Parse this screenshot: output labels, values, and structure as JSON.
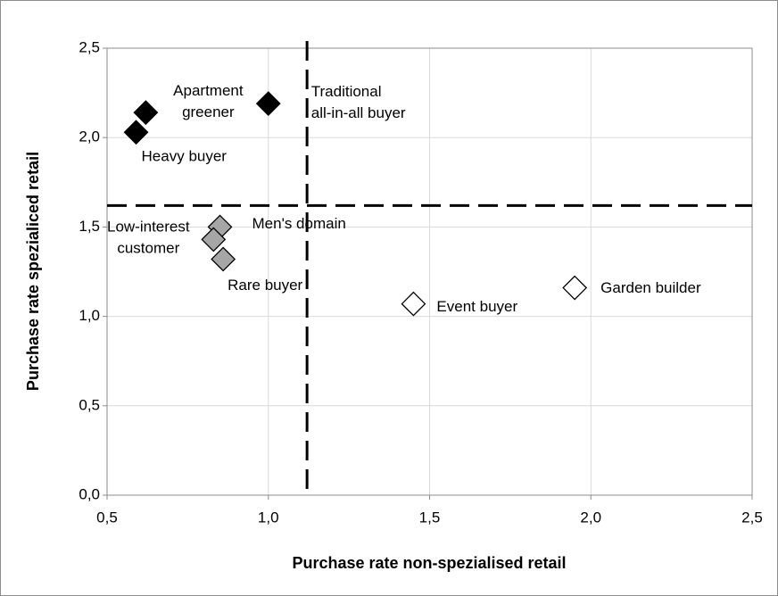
{
  "chart_data": {
    "type": "scatter",
    "x_label": "Purchase rate non-spezialised retail",
    "y_label": "Purchase rate spezialiced retail",
    "xlim": [
      0.5,
      2.5
    ],
    "ylim": [
      0,
      2.5
    ],
    "xticks": [
      {
        "value": 0.5,
        "label": "0,5"
      },
      {
        "value": 1,
        "label": "1,0"
      },
      {
        "value": 1.5,
        "label": "1,5"
      },
      {
        "value": 2,
        "label": "2,0"
      },
      {
        "value": 2.5,
        "label": "2,5"
      }
    ],
    "yticks": [
      {
        "value": 0,
        "label": "0,0"
      },
      {
        "value": 0.5,
        "label": "0,5"
      },
      {
        "value": 1,
        "label": "1,0"
      },
      {
        "value": 1.5,
        "label": "1,5"
      },
      {
        "value": 2,
        "label": "2,0"
      },
      {
        "value": 2.5,
        "label": "2,5"
      }
    ],
    "grid": true,
    "reference_x": 1.12,
    "reference_y": 1.62,
    "series": [
      {
        "color": "#000000",
        "labels": [
          "Heavy buyer",
          "Apartment\ngreener",
          "Traditional\nall-in-all buyer"
        ],
        "x": [
          0.59,
          0.62,
          1.0
        ],
        "y": [
          2.03,
          2.14,
          2.19
        ]
      },
      {
        "color": "#a6a6a6",
        "labels": [
          "Men's domain",
          "Low-interest\ncustomer",
          "Rare buyer"
        ],
        "x": [
          0.85,
          0.83,
          0.86
        ],
        "y": [
          1.5,
          1.43,
          1.32
        ]
      },
      {
        "color": "#ffffff",
        "labels": [
          "Event buyer",
          "Garden builder"
        ],
        "x": [
          1.45,
          1.95
        ],
        "y": [
          1.07,
          1.16
        ]
      }
    ]
  }
}
